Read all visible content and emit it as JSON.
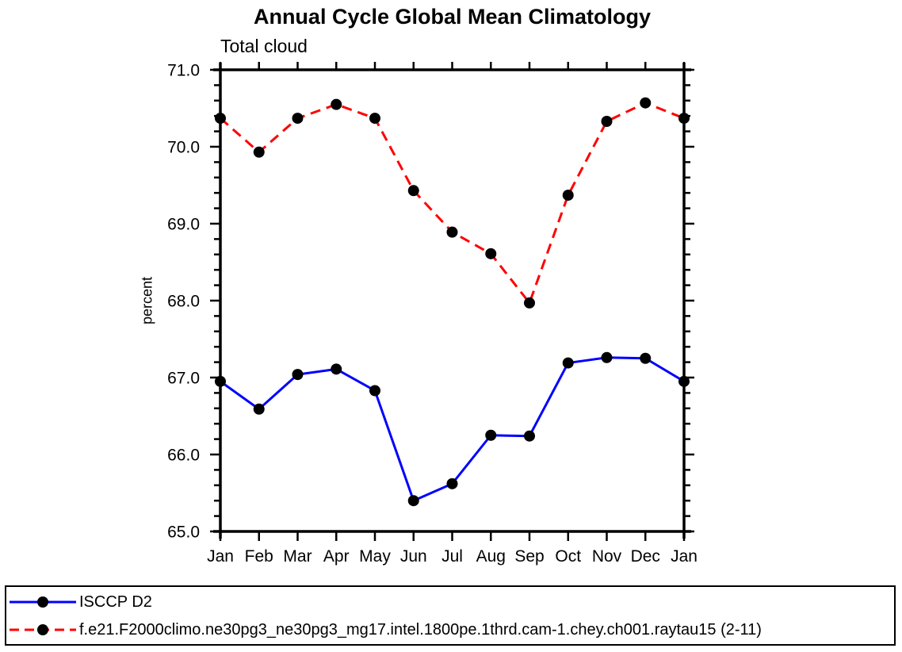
{
  "title": "Annual Cycle Global Mean Climatology",
  "chart_data": {
    "type": "line",
    "title": "Annual Cycle Global Mean Climatology",
    "subtitle": "Total cloud",
    "ylabel": "percent",
    "xlabel": "",
    "categories": [
      "Jan",
      "Feb",
      "Mar",
      "Apr",
      "May",
      "Jun",
      "Jul",
      "Aug",
      "Sep",
      "Oct",
      "Nov",
      "Dec",
      "Jan"
    ],
    "ylim": [
      65.0,
      71.0
    ],
    "y_major_tick_step": 1.0,
    "y_minor_tick_step": 0.2,
    "y_tick_labels": [
      "65.0",
      "66.0",
      "67.0",
      "68.0",
      "69.0",
      "70.0",
      "71.0"
    ],
    "grid": "off",
    "legend_position": "bottom-boxed",
    "background_color": "#ffffff",
    "axis_color": "#000000",
    "series": [
      {
        "name": "ISCCP D2",
        "color": "#0000ff",
        "line_style": "solid",
        "marker": "circle",
        "marker_color": "#000000",
        "values": [
          66.95,
          66.59,
          67.04,
          67.11,
          66.83,
          65.4,
          65.62,
          66.25,
          66.24,
          67.19,
          67.26,
          67.25,
          66.95
        ]
      },
      {
        "name": "f.e21.F2000climo.ne30pg3_ne30pg3_mg17.intel.1800pe.1thrd.cam-1.chey.ch001.raytau15 (2-11)",
        "color": "#ff0000",
        "line_style": "dashed",
        "marker": "circle",
        "marker_color": "#000000",
        "values": [
          70.37,
          69.93,
          70.37,
          70.55,
          70.37,
          69.43,
          68.89,
          68.61,
          67.97,
          69.37,
          70.33,
          70.57,
          70.37
        ]
      }
    ]
  }
}
